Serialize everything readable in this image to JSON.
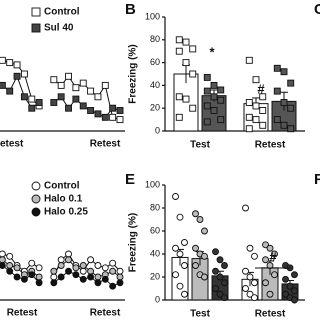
{
  "chart_data": [
    {
      "type": "line",
      "marker": "square",
      "x": [
        1,
        2,
        3,
        4,
        5,
        6,
        7,
        8,
        9,
        10,
        11,
        12,
        13,
        14,
        15,
        16,
        17
      ],
      "xlim": [
        0,
        17
      ],
      "ylim": [
        0,
        100
      ],
      "group_labels": [
        "Retest",
        "Retest"
      ],
      "series": [
        {
          "name": "Control",
          "color": "#ffffff",
          "values": [
            62,
            60,
            58,
            50,
            28,
            22,
            null,
            45,
            40,
            48,
            38,
            42,
            35,
            30,
            40,
            12,
            10
          ]
        },
        {
          "name": "Sul 40",
          "color": "#444444",
          "values": [
            40,
            35,
            48,
            30,
            20,
            25,
            null,
            25,
            30,
            20,
            28,
            22,
            18,
            15,
            12,
            20,
            18
          ]
        }
      ]
    },
    {
      "type": "bar",
      "marker": "square",
      "panel_label": "B",
      "y_label": "Freezing (%)",
      "categories": [
        "Test",
        "Retest"
      ],
      "ylim": [
        0,
        100
      ],
      "yticks": [
        0,
        20,
        40,
        60,
        80,
        100
      ],
      "annotations": [
        "*",
        "#"
      ],
      "series": [
        {
          "name": "Control",
          "color": "#ffffff",
          "values": [
            50,
            24
          ],
          "errors": [
            8,
            5
          ],
          "points": [
            [
              80,
              78,
              72,
              70,
              60,
              50,
              30,
              28,
              20,
              12
            ],
            [
              62,
              45,
              30,
              25,
              22,
              18,
              12,
              10,
              5,
              2
            ]
          ]
        },
        {
          "name": "Sul 40",
          "color": "#555555",
          "values": [
            31,
            26
          ],
          "errors": [
            5,
            8
          ],
          "points": [
            [
              47,
              40,
              36,
              35,
              30,
              27,
              22,
              18,
              10,
              8
            ],
            [
              55,
              52,
              42,
              35,
              25,
              20,
              10,
              5,
              2
            ]
          ]
        }
      ]
    },
    {
      "type": "line",
      "marker": "circle",
      "x": [
        1,
        2,
        3,
        4,
        5,
        6,
        7,
        8,
        9,
        10,
        11,
        12,
        13,
        14,
        15,
        16,
        17
      ],
      "xlim": [
        0,
        17
      ],
      "ylim": [
        0,
        100
      ],
      "group_labels": [
        "Retest",
        "Retest"
      ],
      "series": [
        {
          "name": "Control",
          "color": "#ffffff",
          "values": [
            40,
            38,
            30,
            25,
            32,
            28,
            null,
            20,
            35,
            40,
            30,
            25,
            35,
            30,
            28,
            32,
            25
          ]
        },
        {
          "name": "Halo 0.1",
          "color": "#bbbbbb",
          "values": [
            35,
            30,
            28,
            22,
            25,
            20,
            null,
            25,
            30,
            35,
            28,
            30,
            25,
            20,
            22,
            25,
            20
          ]
        },
        {
          "name": "Halo 0.25",
          "color": "#111111",
          "values": [
            30,
            25,
            20,
            18,
            22,
            15,
            null,
            15,
            20,
            25,
            22,
            18,
            20,
            15,
            18,
            12,
            15
          ]
        }
      ]
    },
    {
      "type": "bar",
      "marker": "circle",
      "panel_label": "E",
      "y_label": "Freezing (%)",
      "categories": [
        "Test",
        "Retest"
      ],
      "ylim": [
        0,
        100
      ],
      "yticks": [
        0,
        20,
        40,
        60,
        80,
        100
      ],
      "annotations": [
        "#"
      ],
      "series": [
        {
          "name": "Control",
          "color": "#ffffff",
          "values": [
            37,
            18
          ],
          "errors": [
            7,
            6
          ],
          "points": [
            [
              90,
              72,
              50,
              45,
              40,
              30,
              22,
              12,
              5
            ],
            [
              80,
              45,
              38,
              25,
              20,
              15,
              10,
              5,
              2
            ]
          ]
        },
        {
          "name": "Halo 0.1",
          "color": "#bbbbbb",
          "values": [
            36,
            28
          ],
          "errors": [
            6,
            6
          ],
          "points": [
            [
              75,
              70,
              60,
              45,
              40,
              38,
              30,
              22,
              20
            ],
            [
              48,
              45,
              40,
              35,
              30,
              22,
              15,
              5
            ]
          ]
        },
        {
          "name": "Halo 0.25",
          "color": "#333333",
          "values": [
            21,
            14
          ],
          "errors": [
            4,
            3
          ],
          "points": [
            [
              42,
              35,
              30,
              25,
              20,
              15,
              10,
              5,
              2
            ],
            [
              30,
              28,
              22,
              18,
              12,
              8,
              5,
              2,
              0
            ]
          ]
        }
      ]
    }
  ],
  "clipped_panel_labels": [
    "C",
    "F"
  ]
}
